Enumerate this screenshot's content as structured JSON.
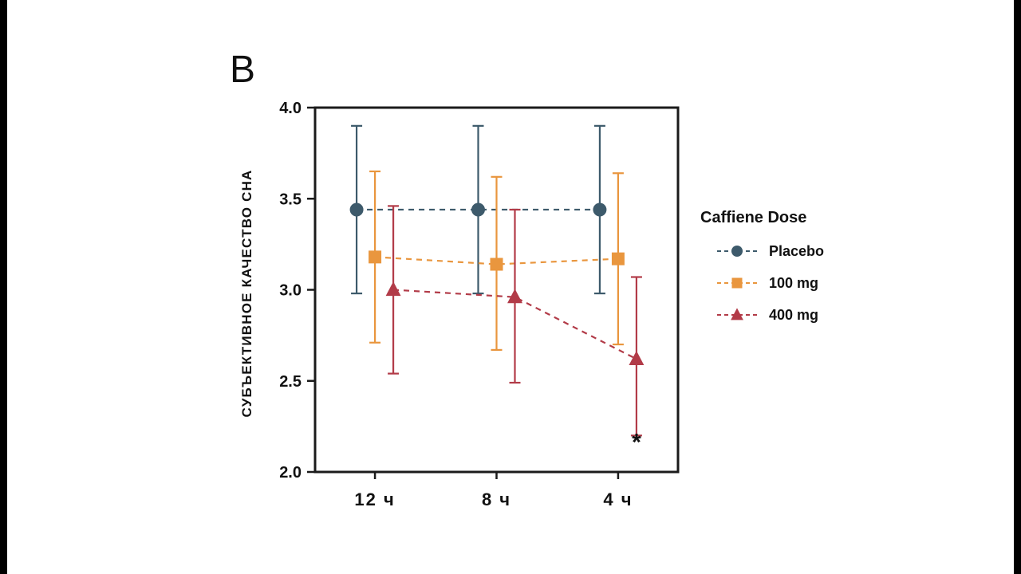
{
  "panel_label": "B",
  "chart_data": {
    "type": "line",
    "title": "",
    "xlabel": "",
    "ylabel": "СУБЪЕКТИВНОЕ КАЧЕСТВО СНА",
    "legend_title": "Caffiene Dose",
    "legend_position": "right",
    "grid": false,
    "categories": [
      "12 ч",
      "8 ч",
      "4 ч"
    ],
    "ylim": [
      2.0,
      4.0
    ],
    "yticks": [
      4.0,
      3.5,
      3.0,
      2.5,
      2.0
    ],
    "series": [
      {
        "name": "Placebo",
        "marker": "circle",
        "color": "#3d5a6b",
        "linestyle": "dashed",
        "values": [
          3.44,
          3.44,
          3.44
        ],
        "err_low": [
          2.98,
          2.98,
          2.98
        ],
        "err_high": [
          3.9,
          3.9,
          3.9
        ]
      },
      {
        "name": "100 mg",
        "marker": "square",
        "color": "#e9963e",
        "linestyle": "dashed",
        "values": [
          3.18,
          3.14,
          3.17
        ],
        "err_low": [
          2.71,
          2.67,
          2.7
        ],
        "err_high": [
          3.65,
          3.62,
          3.64
        ]
      },
      {
        "name": "400 mg",
        "marker": "triangle",
        "color": "#b23b48",
        "linestyle": "dashed",
        "values": [
          3.0,
          2.96,
          2.62
        ],
        "err_low": [
          2.54,
          2.49,
          2.2
        ],
        "err_high": [
          3.46,
          3.44,
          3.07
        ]
      }
    ],
    "annotation": {
      "text": "*",
      "category": "4 ч",
      "series": "400 mg",
      "y": 2.12
    }
  }
}
